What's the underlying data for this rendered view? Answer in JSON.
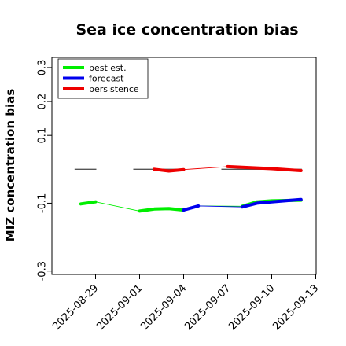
{
  "chart_data": {
    "type": "line",
    "title": "Sea ice concentration bias",
    "ylabel": "MIZ concentration bias",
    "xlabel": "",
    "ylim": [
      -0.31,
      0.33
    ],
    "xlim": [
      "2025-08-26",
      "2025-09-13"
    ],
    "y_ticks": [
      -0.3,
      -0.1,
      0.1,
      0.2,
      0.3
    ],
    "y_tick_labels": [
      "-0.3",
      "-0.1",
      "0.1",
      "0.2",
      "0.3"
    ],
    "x_ticks": [
      "2025-08-29",
      "2025-09-01",
      "2025-09-04",
      "2025-09-07",
      "2025-09-10",
      "2025-09-13"
    ],
    "x_tick_labels": [
      "2025-08-29",
      "2025-09-01",
      "2025-09-04",
      "2025-09-07",
      "2025-09-10",
      "2025-09-13"
    ],
    "x_tick_label_colors": [
      "#000000",
      "#000000",
      "#228B22",
      "#000000",
      "#000000",
      "#000000"
    ],
    "legend_position": "top-left",
    "legend": [
      "best est.",
      "forecast",
      "persistence"
    ],
    "series": [
      {
        "name": "best est.",
        "color": "#00ee00",
        "thin_line": {
          "x": [
            "2025-08-28",
            "2025-08-29",
            "2025-09-01",
            "2025-09-02",
            "2025-09-03",
            "2025-09-04",
            "2025-09-05",
            "2025-09-08",
            "2025-09-09",
            "2025-09-10",
            "2025-09-12"
          ],
          "y": [
            -0.102,
            -0.096,
            -0.123,
            -0.117,
            -0.116,
            -0.12,
            -0.108,
            -0.109,
            -0.096,
            -0.093,
            -0.091
          ]
        },
        "thick_segments": [
          {
            "x": [
              "2025-08-28",
              "2025-08-29"
            ],
            "y": [
              -0.102,
              -0.096
            ]
          },
          {
            "x": [
              "2025-09-01",
              "2025-09-02",
              "2025-09-03",
              "2025-09-04"
            ],
            "y": [
              -0.123,
              -0.117,
              -0.116,
              -0.12
            ]
          },
          {
            "x": [
              "2025-09-08",
              "2025-09-09",
              "2025-09-10",
              "2025-09-12"
            ],
            "y": [
              -0.109,
              -0.096,
              -0.093,
              -0.091
            ]
          }
        ]
      },
      {
        "name": "forecast",
        "color": "#0000ee",
        "thin_line": {
          "x": [
            "2025-09-04",
            "2025-09-05",
            "2025-09-08",
            "2025-09-09",
            "2025-09-10",
            "2025-09-12"
          ],
          "y": [
            -0.12,
            -0.108,
            -0.111,
            -0.1,
            -0.096,
            -0.089
          ]
        },
        "thick_segments": [
          {
            "x": [
              "2025-09-04",
              "2025-09-05"
            ],
            "y": [
              -0.12,
              -0.108
            ]
          },
          {
            "x": [
              "2025-09-08",
              "2025-09-09",
              "2025-09-10",
              "2025-09-12"
            ],
            "y": [
              -0.111,
              -0.1,
              -0.096,
              -0.089
            ]
          }
        ]
      },
      {
        "name": "persistence",
        "color": "#ee0000",
        "thin_line": {
          "x": [
            "2025-09-02",
            "2025-09-03",
            "2025-09-04",
            "2025-09-07",
            "2025-09-10",
            "2025-09-12"
          ],
          "y": [
            0.0,
            -0.005,
            -0.001,
            0.008,
            0.002,
            -0.004
          ]
        },
        "thick_segments": [
          {
            "x": [
              "2025-09-02",
              "2025-09-03",
              "2025-09-04"
            ],
            "y": [
              0.0,
              -0.005,
              -0.001
            ]
          },
          {
            "x": [
              "2025-09-07",
              "2025-09-10",
              "2025-09-12"
            ],
            "y": [
              0.008,
              0.002,
              -0.004
            ]
          }
        ]
      }
    ],
    "reference_dashes": {
      "color": "#555555",
      "y": 0.0,
      "segments": [
        {
          "x": [
            "2025-08-28",
            "2025-08-29"
          ]
        },
        {
          "x": [
            "2025-09-01",
            "2025-09-04"
          ]
        },
        {
          "x": [
            "2025-09-07",
            "2025-09-12"
          ]
        }
      ]
    }
  }
}
